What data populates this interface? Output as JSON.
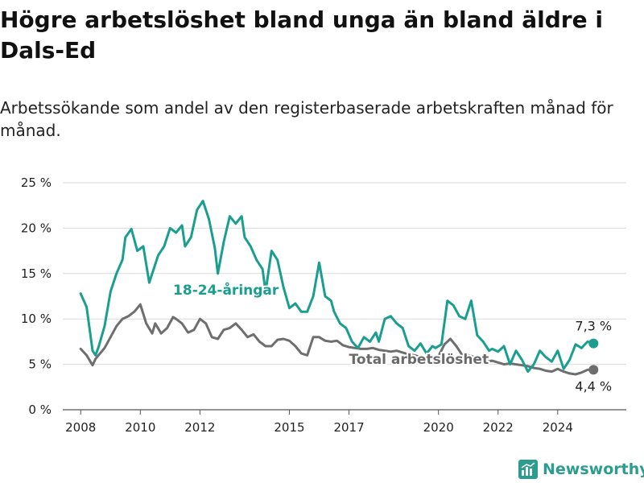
{
  "title": "Högre arbetslöshet bland unga än bland äldre i Dals-Ed",
  "subtitle": "Arbetssökande som andel av den registerbaserade arbetskraften månad för månad.",
  "brand": {
    "name": "Newsworthy",
    "icon": "bar-chart-logo-icon",
    "color": "#2a9d8f"
  },
  "chart_data": {
    "type": "line",
    "title": "Högre arbetslöshet bland unga än bland äldre i Dals-Ed",
    "subtitle": "Arbetssökande som andel av den registerbaserade arbetskraften månad för månad.",
    "ylim": [
      0,
      25
    ],
    "xlim": [
      2007.4,
      2026.3
    ],
    "grid": "horizontal",
    "y_ticks": [
      0,
      5,
      10,
      15,
      20,
      25
    ],
    "y_tick_labels": [
      "0 %",
      "5 %",
      "10 %",
      "15 %",
      "20 %",
      "25 %"
    ],
    "x_ticks": [
      2008,
      2010,
      2012,
      2015,
      2017,
      2020,
      2022,
      2024
    ],
    "x_tick_labels": [
      "2008",
      "2010",
      "2012",
      "2015",
      "2017",
      "2020",
      "2022",
      "2024"
    ],
    "series": [
      {
        "name": "18-24-åringar",
        "color": "#1a9e8f",
        "end_label": "7,3 %",
        "x": [
          2008.0,
          2008.2,
          2008.4,
          2008.5,
          2008.6,
          2008.8,
          2009.0,
          2009.2,
          2009.4,
          2009.5,
          2009.7,
          2009.9,
          2010.1,
          2010.3,
          2010.5,
          2010.6,
          2010.8,
          2011.0,
          2011.2,
          2011.4,
          2011.5,
          2011.7,
          2011.9,
          2012.1,
          2012.3,
          2012.5,
          2012.6,
          2012.8,
          2013.0,
          2013.2,
          2013.4,
          2013.5,
          2013.7,
          2013.9,
          2014.1,
          2014.2,
          2014.4,
          2014.6,
          2014.8,
          2015.0,
          2015.2,
          2015.4,
          2015.6,
          2015.8,
          2016.0,
          2016.2,
          2016.4,
          2016.5,
          2016.7,
          2016.9,
          2017.1,
          2017.3,
          2017.5,
          2017.7,
          2017.9,
          2018.0,
          2018.2,
          2018.4,
          2018.6,
          2018.8,
          2019.0,
          2019.2,
          2019.4,
          2019.6,
          2019.8,
          2019.9,
          2020.1,
          2020.3,
          2020.5,
          2020.7,
          2020.9,
          2021.1,
          2021.3,
          2021.5,
          2021.7,
          2021.8,
          2022.0,
          2022.2,
          2022.4,
          2022.6,
          2022.8,
          2023.0,
          2023.2,
          2023.4,
          2023.6,
          2023.8,
          2024.0,
          2024.2,
          2024.4,
          2024.6,
          2024.8,
          2025.0,
          2025.2
        ],
        "values": [
          12.8,
          11.3,
          6.5,
          6.0,
          6.9,
          9.2,
          13.0,
          15.0,
          16.5,
          19.0,
          19.9,
          17.5,
          18.0,
          14.0,
          16.0,
          17.0,
          18.0,
          20.0,
          19.5,
          20.3,
          18.0,
          19.0,
          22.0,
          23.0,
          21.0,
          17.8,
          15.0,
          18.5,
          21.3,
          20.5,
          21.3,
          19.0,
          18.0,
          16.5,
          15.5,
          13.0,
          17.5,
          16.5,
          13.5,
          11.2,
          11.7,
          10.8,
          10.8,
          12.5,
          16.2,
          12.5,
          12.0,
          10.8,
          9.5,
          9.0,
          7.5,
          6.8,
          8.0,
          7.5,
          8.5,
          7.5,
          10.0,
          10.3,
          9.5,
          9.0,
          7.0,
          6.5,
          7.3,
          6.2,
          7.0,
          6.8,
          7.2,
          12.0,
          11.5,
          10.3,
          10.0,
          12.0,
          8.2,
          7.5,
          6.5,
          6.7,
          6.4,
          7.0,
          5.0,
          6.5,
          5.5,
          4.2,
          5.0,
          6.5,
          5.8,
          5.3,
          6.5,
          4.5,
          5.5,
          7.2,
          6.8,
          7.5,
          7.3
        ]
      },
      {
        "name": "Total arbetslöshet",
        "color": "#6e6e6e",
        "end_label": "4,4 %",
        "x": [
          2008.0,
          2008.2,
          2008.4,
          2008.5,
          2008.6,
          2008.8,
          2009.0,
          2009.2,
          2009.4,
          2009.6,
          2009.8,
          2010.0,
          2010.2,
          2010.4,
          2010.5,
          2010.7,
          2010.9,
          2011.1,
          2011.2,
          2011.4,
          2011.6,
          2011.8,
          2012.0,
          2012.2,
          2012.4,
          2012.6,
          2012.8,
          2013.0,
          2013.2,
          2013.4,
          2013.6,
          2013.8,
          2014.0,
          2014.2,
          2014.4,
          2014.6,
          2014.8,
          2015.0,
          2015.2,
          2015.4,
          2015.6,
          2015.8,
          2016.0,
          2016.2,
          2016.4,
          2016.6,
          2016.8,
          2017.0,
          2017.2,
          2017.4,
          2017.6,
          2017.8,
          2018.0,
          2018.2,
          2018.4,
          2018.6,
          2018.8,
          2019.0,
          2019.2,
          2019.4,
          2019.6,
          2019.8,
          2020.0,
          2020.2,
          2020.4,
          2020.6,
          2020.8,
          2021.0,
          2021.2,
          2021.4,
          2021.6,
          2021.8,
          2022.0,
          2022.2,
          2022.4,
          2022.6,
          2022.8,
          2023.0,
          2023.2,
          2023.4,
          2023.6,
          2023.8,
          2024.0,
          2024.2,
          2024.4,
          2024.6,
          2024.8,
          2025.0,
          2025.2
        ],
        "values": [
          6.7,
          6.0,
          4.9,
          5.6,
          6.0,
          6.8,
          8.0,
          9.2,
          10.0,
          10.3,
          10.8,
          11.6,
          9.5,
          8.4,
          9.5,
          8.4,
          9.0,
          10.2,
          10.0,
          9.5,
          8.5,
          8.8,
          10.0,
          9.5,
          8.0,
          7.8,
          8.8,
          9.0,
          9.5,
          8.8,
          8.0,
          8.3,
          7.5,
          7.0,
          7.0,
          7.7,
          7.8,
          7.6,
          7.0,
          6.2,
          6.0,
          8.0,
          8.0,
          7.6,
          7.5,
          7.6,
          7.1,
          6.9,
          6.8,
          6.7,
          6.7,
          6.8,
          6.6,
          6.5,
          6.4,
          6.5,
          6.3,
          6.1,
          6.0,
          5.8,
          5.7,
          5.6,
          5.9,
          7.2,
          7.8,
          7.0,
          6.0,
          6.0,
          5.8,
          5.6,
          5.3,
          5.4,
          5.2,
          5.0,
          5.1,
          5.0,
          4.9,
          4.8,
          4.6,
          4.5,
          4.3,
          4.2,
          4.5,
          4.2,
          4.0,
          3.9,
          4.1,
          4.4,
          4.4
        ]
      }
    ]
  }
}
